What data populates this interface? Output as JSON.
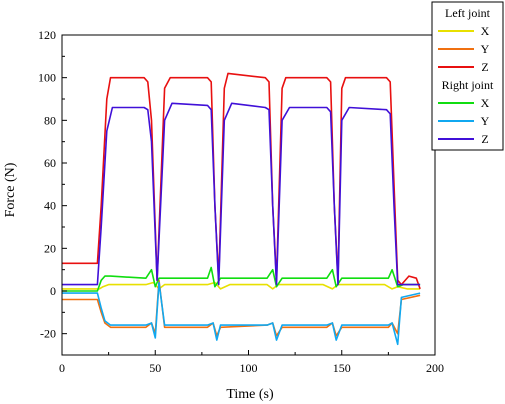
{
  "chart_data": {
    "type": "line",
    "xlabel": "Time (s)",
    "ylabel": "Force (N)",
    "xlim": [
      0,
      200
    ],
    "ylim": [
      -30,
      120
    ],
    "x_ticks": [
      0,
      50,
      100,
      150,
      200
    ],
    "y_ticks": [
      -20,
      0,
      20,
      40,
      60,
      80,
      100,
      120
    ],
    "grid": false,
    "legend_position": "top-right",
    "legend_groups": [
      {
        "title": "Left joint",
        "series": [
          "X",
          "Y",
          "Z"
        ]
      },
      {
        "title": "Right joint",
        "series": [
          "X",
          "Y",
          "Z"
        ]
      }
    ],
    "series": [
      {
        "name": "X",
        "group": "Left joint",
        "color": "#e8e000",
        "x": [
          0,
          20,
          22,
          25,
          30,
          45,
          49,
          52,
          55,
          60,
          78,
          82,
          85,
          90,
          110,
          113,
          116,
          120,
          140,
          145,
          148,
          150,
          155,
          173,
          177,
          180,
          185,
          192
        ],
        "y": [
          1,
          1,
          2,
          3,
          3,
          3,
          4,
          1,
          3,
          3,
          3,
          4,
          1,
          3,
          3,
          1,
          3,
          3,
          3,
          1,
          3,
          3,
          3,
          3,
          1,
          2,
          1,
          1
        ]
      },
      {
        "name": "Y",
        "group": "Left joint",
        "color": "#f07010",
        "x": [
          0,
          19,
          21,
          23,
          26,
          45,
          48,
          50,
          52,
          55,
          78,
          81,
          83,
          85,
          110,
          113,
          115,
          118,
          142,
          145,
          147,
          150,
          175,
          177,
          180,
          182,
          192
        ],
        "y": [
          -4,
          -4,
          -10,
          -15,
          -17,
          -17,
          -15,
          -20,
          5,
          -17,
          -17,
          -15,
          -21,
          -17,
          -16,
          -15,
          -21,
          -17,
          -17,
          -15,
          -21,
          -17,
          -17,
          -15,
          -20,
          -4,
          -2
        ]
      },
      {
        "name": "Z",
        "group": "Left joint",
        "color": "#e81010",
        "x": [
          0,
          19,
          21,
          24,
          26,
          44,
          46,
          48,
          51,
          55,
          58,
          78,
          80,
          82,
          84,
          87,
          89,
          109,
          111,
          113,
          115,
          118,
          120,
          142,
          144,
          146,
          148,
          150,
          152,
          174,
          176,
          178,
          180,
          182,
          186,
          190,
          192
        ],
        "y": [
          13,
          13,
          40,
          90,
          100,
          100,
          98,
          80,
          5,
          95,
          100,
          100,
          98,
          40,
          5,
          95,
          102,
          100,
          98,
          40,
          5,
          95,
          100,
          100,
          98,
          40,
          5,
          95,
          100,
          100,
          98,
          50,
          5,
          3,
          7,
          6,
          1
        ]
      },
      {
        "name": "X",
        "group": "Right joint",
        "color": "#10dd10",
        "x": [
          0,
          19,
          21,
          23,
          26,
          45,
          48,
          50,
          52,
          55,
          78,
          80,
          82,
          85,
          110,
          113,
          115,
          118,
          142,
          145,
          147,
          150,
          175,
          177,
          180,
          183,
          192
        ],
        "y": [
          0,
          0,
          5,
          7,
          7,
          6,
          10,
          2,
          6,
          6,
          6,
          11,
          2,
          6,
          6,
          10,
          2,
          6,
          6,
          10,
          2,
          6,
          6,
          10,
          2,
          3,
          3
        ]
      },
      {
        "name": "Y",
        "group": "Right joint",
        "color": "#10a8f0",
        "x": [
          0,
          19,
          21,
          23,
          26,
          45,
          48,
          50,
          52,
          55,
          78,
          81,
          83,
          85,
          110,
          113,
          115,
          118,
          142,
          145,
          147,
          150,
          175,
          177,
          180,
          182,
          192
        ],
        "y": [
          -1,
          -1,
          -8,
          -14,
          -16,
          -16,
          -15,
          -22,
          4,
          -16,
          -16,
          -15,
          -23,
          -16,
          -16,
          -15,
          -23,
          -16,
          -16,
          -15,
          -23,
          -16,
          -16,
          -15,
          -25,
          -3,
          -1
        ]
      },
      {
        "name": "Z",
        "group": "Right joint",
        "color": "#4010d8",
        "x": [
          0,
          19,
          21,
          24,
          27,
          44,
          46,
          48,
          51,
          55,
          59,
          78,
          80,
          82,
          84,
          87,
          91,
          109,
          111,
          113,
          115,
          118,
          122,
          142,
          144,
          146,
          148,
          150,
          154,
          174,
          176,
          178,
          180,
          182,
          192
        ],
        "y": [
          3,
          3,
          30,
          75,
          86,
          86,
          85,
          70,
          5,
          80,
          88,
          87,
          85,
          40,
          3,
          80,
          88,
          86,
          85,
          40,
          3,
          80,
          86,
          86,
          84,
          40,
          3,
          80,
          86,
          85,
          83,
          40,
          3,
          3,
          3
        ]
      }
    ]
  }
}
